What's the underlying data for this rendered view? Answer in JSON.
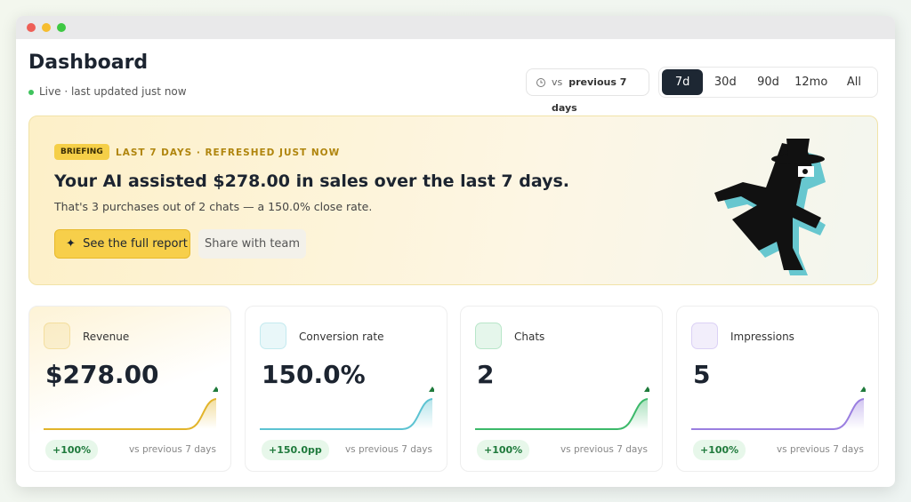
{
  "header": {
    "title": "Dashboard",
    "status": "Live · last updated just now"
  },
  "compare": {
    "prefix": "vs",
    "period": "previous 7 days"
  },
  "ranges": {
    "options": [
      "7d",
      "30d",
      "90d",
      "12mo",
      "All"
    ],
    "active": 0
  },
  "briefing": {
    "badge": "BRIEFING",
    "meta": "LAST 7 DAYS · REFRESHED JUST NOW",
    "headline": "Your AI assisted $278.00 in sales over the last 7 days.",
    "sub": "That's 3 purchases out of 2 chats — a 150.0% close rate.",
    "primary": "See the full report",
    "secondary": "Share with team"
  },
  "cards": [
    {
      "label": "Revenue",
      "value": "$278.00",
      "delta": "+100%",
      "compare": "vs previous 7 days",
      "color": "#e2b42a"
    },
    {
      "label": "Conversion rate",
      "value": "150.0%",
      "delta": "+150.0pp",
      "compare": "vs previous 7 days",
      "color": "#5cc3d2"
    },
    {
      "label": "Chats",
      "value": "2",
      "delta": "+100%",
      "compare": "vs previous 7 days",
      "color": "#3cb96a"
    },
    {
      "label": "Impressions",
      "value": "5",
      "delta": "+100%",
      "compare": "vs previous 7 days",
      "color": "#9a7ee0"
    }
  ]
}
